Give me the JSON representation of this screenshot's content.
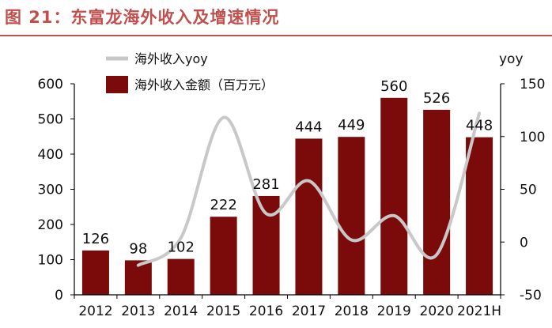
{
  "header": {
    "title": "图 21：东富龙海外收入及增速情况"
  },
  "colors": {
    "title": "#c0504d",
    "bar": "#7b0b0b",
    "line": "#c8c8c8",
    "axis": "#000000"
  },
  "chart_data": {
    "type": "bar",
    "categories": [
      "2012",
      "2013",
      "2014",
      "2015",
      "2016",
      "2017",
      "2018",
      "2019",
      "2020",
      "2021H"
    ],
    "series": [
      {
        "name": "海外收入金额（百万元）",
        "type": "bar",
        "axis": "left",
        "values": [
          126,
          98,
          102,
          222,
          281,
          444,
          449,
          560,
          526,
          448
        ],
        "data_labels": [
          "126",
          "98",
          "102",
          "222",
          "281",
          "444",
          "449",
          "560",
          "526",
          "448"
        ]
      },
      {
        "name": "海外收入yoy",
        "type": "line",
        "axis": "right",
        "smooth": true,
        "values": [
          null,
          -22,
          4,
          118,
          27,
          58,
          2,
          25,
          -12,
          122
        ]
      }
    ],
    "y_left": {
      "ylim": [
        0,
        600
      ],
      "ticks": [
        0,
        100,
        200,
        300,
        400,
        500,
        600
      ]
    },
    "y_right": {
      "label": "yoy",
      "ylim": [
        -50,
        150
      ],
      "ticks": [
        -50,
        0,
        50,
        100,
        150
      ]
    },
    "legend": {
      "position": "top-left"
    },
    "grid": false
  }
}
